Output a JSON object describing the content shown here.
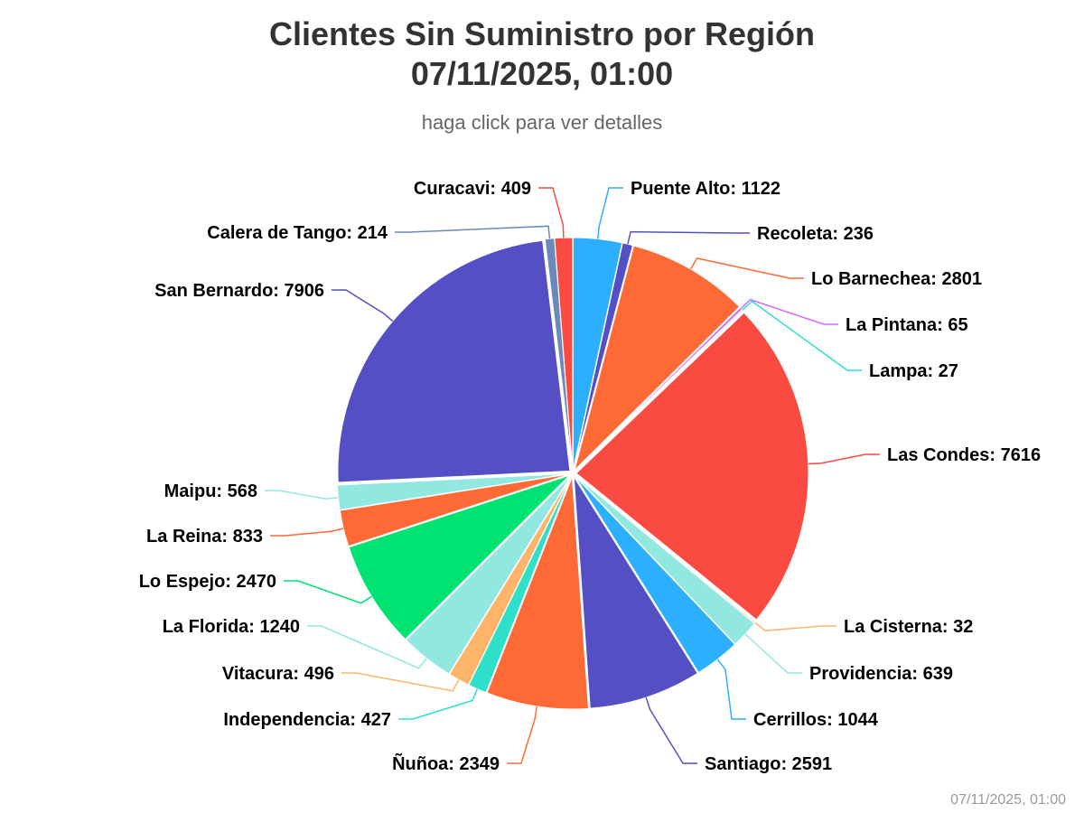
{
  "chart_data": {
    "type": "pie",
    "title_line1": "Clientes Sin Suministro por Región",
    "title_line2": "07/11/2025, 01:00",
    "subtitle": "haga click para ver detalles",
    "credit": "07/11/2025, 01:00",
    "slices": [
      {
        "name": "Puente Alto",
        "value": 1122,
        "color": "#2caffe"
      },
      {
        "name": "Recoleta",
        "value": 236,
        "color": "#544fc5"
      },
      {
        "name": "Lo Barnechea",
        "value": 2801,
        "color": "#fe6a35"
      },
      {
        "name": "La Pintana",
        "value": 65,
        "color": "#d568fb"
      },
      {
        "name": "Lampa",
        "value": 27,
        "color": "#2ee0ca"
      },
      {
        "name": "Las Condes",
        "value": 7616,
        "color": "#fa4b42"
      },
      {
        "name": "La Cisterna",
        "value": 32,
        "color": "#feb56a"
      },
      {
        "name": "Providencia",
        "value": 639,
        "color": "#91e8e1"
      },
      {
        "name": "Cerrillos",
        "value": 1044,
        "color": "#2caffe"
      },
      {
        "name": "Santiago",
        "value": 2591,
        "color": "#544fc5"
      },
      {
        "name": "Ñuñoa",
        "value": 2349,
        "color": "#fe6a35"
      },
      {
        "name": "La Pintana",
        "value": 0,
        "color": "#d568fb",
        "hidden_label": true
      },
      {
        "name": "Independencia",
        "value": 427,
        "color": "#2ee0ca"
      },
      {
        "name": "",
        "value": 0,
        "color": "#fa4b42",
        "hidden_label": true
      },
      {
        "name": "Vitacura",
        "value": 496,
        "color": "#feb56a"
      },
      {
        "name": "La Florida",
        "value": 1240,
        "color": "#91e8e1"
      },
      {
        "name": "",
        "value": 0,
        "color": "#544fc5",
        "hidden_label": true
      },
      {
        "name": "Lo Espejo",
        "value": 2470,
        "color": "#00e272"
      },
      {
        "name": "La Reina",
        "value": 833,
        "color": "#fe6a35"
      },
      {
        "name": "",
        "value": 0,
        "color": "#d568fb",
        "hidden_label": true
      },
      {
        "name": "Maipu",
        "value": 568,
        "color": "#91e8e1"
      },
      {
        "name": "San Bernardo",
        "value": 7906,
        "color": "#544fc5"
      },
      {
        "name": "",
        "value": 0,
        "color": "#feb56a",
        "hidden_label": true
      },
      {
        "name": "Calera de Tango",
        "value": 214,
        "color": "#6b8abc"
      },
      {
        "name": "Curacavi",
        "value": 409,
        "color": "#fa4b42"
      }
    ]
  }
}
